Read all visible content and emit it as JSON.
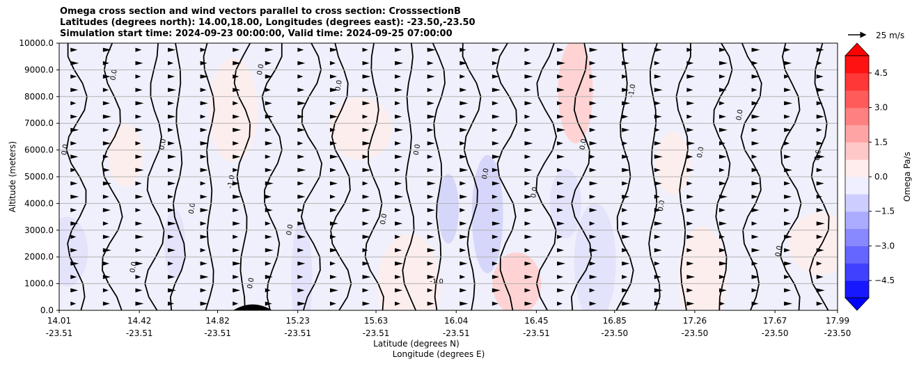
{
  "chart_data": {
    "type": "heatmap",
    "title_lines": [
      "Omega cross section and wind vectors parallel to cross section: CrosssectionB",
      "Latitudes (degrees north): 14.00,18.00, Longitudes (degrees east): -23.50,-23.50",
      "Simulation start time: 2024-09-23 00:00:00, Valid time: 2024-09-25 07:00:00"
    ],
    "ylabel": "Altitude (meters)",
    "xlabel_lines": [
      "Latitude (degrees N)",
      "Longitude (degrees E)"
    ],
    "ylim": [
      0,
      10000
    ],
    "yticks": [
      "0.0",
      "1000.0",
      "2000.0",
      "3000.0",
      "4000.0",
      "5000.0",
      "6000.0",
      "7000.0",
      "8000.0",
      "9000.0",
      "10000.0"
    ],
    "xlim": [
      14.01,
      17.99
    ],
    "xticks": [
      {
        "lat": "14.01",
        "lon": "-23.51"
      },
      {
        "lat": "14.42",
        "lon": "-23.51"
      },
      {
        "lat": "14.82",
        "lon": "-23.51"
      },
      {
        "lat": "15.23",
        "lon": "-23.51"
      },
      {
        "lat": "15.63",
        "lon": "-23.51"
      },
      {
        "lat": "16.04",
        "lon": "-23.51"
      },
      {
        "lat": "16.45",
        "lon": "-23.51"
      },
      {
        "lat": "16.85",
        "lon": "-23.50"
      },
      {
        "lat": "17.26",
        "lon": "-23.50"
      },
      {
        "lat": "17.67",
        "lon": "-23.50"
      },
      {
        "lat": "17.99",
        "lon": "-23.50"
      }
    ],
    "grid": "horizontal",
    "colorbar": {
      "label": "Omega Pa/s",
      "range": [
        -5.25,
        5.25
      ],
      "ticks": [
        "-4.5",
        "-3.0",
        "-1.5",
        "0.0",
        "1.5",
        "3.0",
        "4.5"
      ],
      "extend": "both",
      "low_color": "#0000ff",
      "mid_color": "#ffffff",
      "high_color": "#ff0000"
    },
    "quiver_key": "25 m/s",
    "contour_labels": [
      "0.0",
      "-1.0",
      "1.0"
    ],
    "omega_regions_positive": [
      {
        "lat": 14.35,
        "alt": 5800,
        "value": 0.3
      },
      {
        "lat": 14.9,
        "alt": 7500,
        "value": 0.3
      },
      {
        "lat": 15.55,
        "alt": 6800,
        "value": 0.3
      },
      {
        "lat": 16.65,
        "alt": 8200,
        "value": 0.8
      },
      {
        "lat": 16.35,
        "alt": 1000,
        "value": 0.8
      },
      {
        "lat": 15.8,
        "alt": 900,
        "value": 0.5
      },
      {
        "lat": 17.15,
        "alt": 5500,
        "value": 0.3
      },
      {
        "lat": 17.3,
        "alt": 1200,
        "value": 0.5
      },
      {
        "lat": 17.9,
        "alt": 2500,
        "value": 0.5
      }
    ],
    "omega_regions_negative": [
      {
        "lat": 16.0,
        "alt": 3800,
        "value": -0.8
      },
      {
        "lat": 16.2,
        "alt": 3600,
        "value": -0.8
      },
      {
        "lat": 14.05,
        "alt": 2200,
        "value": -0.5
      },
      {
        "lat": 15.25,
        "alt": 1200,
        "value": -0.5
      },
      {
        "lat": 16.6,
        "alt": 4000,
        "value": -0.5
      },
      {
        "lat": 16.75,
        "alt": 1800,
        "value": -0.3
      },
      {
        "lat": 14.6,
        "alt": 2500,
        "value": -0.3
      }
    ],
    "terrain": {
      "lat_center": 15.0,
      "lat_half_width": 0.1,
      "max_alt": 220
    },
    "wind_vectors": "predominantly horizontal, pointing toward increasing latitude, arranged on a regular grid"
  }
}
